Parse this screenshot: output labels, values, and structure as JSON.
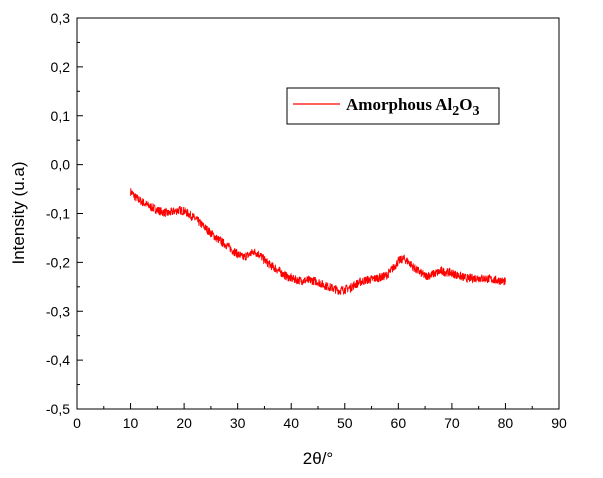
{
  "chart_data": {
    "type": "line",
    "title": "",
    "xlabel": "2θ/°",
    "ylabel": "Intensity (u.a)",
    "xlim": [
      0,
      90
    ],
    "ylim": [
      -0.5,
      0.3
    ],
    "x_ticks": [
      0,
      10,
      20,
      30,
      40,
      50,
      60,
      70,
      80,
      90
    ],
    "x_tick_labels": [
      "0",
      "10",
      "20",
      "30",
      "40",
      "50",
      "60",
      "70",
      "80",
      "90"
    ],
    "y_ticks": [
      -0.5,
      -0.4,
      -0.3,
      -0.2,
      -0.1,
      0.0,
      0.1,
      0.2,
      0.3
    ],
    "y_tick_labels": [
      "-0,5",
      "-0,4",
      "-0,3",
      "-0,2",
      "-0,1",
      "0,0",
      "0,1",
      "0,2",
      "0,3"
    ],
    "grid": false,
    "legend_position": "top-right",
    "series_color": "#ff0000",
    "legend": {
      "prefix": "Amorphous Al",
      "sub1": "2",
      "mid": "O",
      "sub2": "3"
    },
    "series": [
      {
        "name": "Amorphous Al2O3",
        "x": [
          10,
          11,
          12,
          13,
          14,
          15,
          16,
          17,
          18,
          19,
          20,
          21,
          22,
          23,
          24,
          25,
          26,
          27,
          28,
          29,
          30,
          31,
          32,
          33,
          34,
          35,
          36,
          37,
          38,
          39,
          40,
          41,
          42,
          43,
          44,
          45,
          46,
          47,
          48,
          49,
          50,
          51,
          52,
          53,
          54,
          55,
          56,
          57,
          58,
          59,
          60,
          61,
          62,
          63,
          64,
          65,
          66,
          67,
          68,
          69,
          70,
          71,
          72,
          73,
          74,
          75,
          76,
          77,
          78,
          79,
          80
        ],
        "y": [
          -0.055,
          -0.068,
          -0.075,
          -0.082,
          -0.088,
          -0.093,
          -0.097,
          -0.1,
          -0.096,
          -0.093,
          -0.095,
          -0.102,
          -0.11,
          -0.12,
          -0.13,
          -0.14,
          -0.15,
          -0.158,
          -0.165,
          -0.175,
          -0.183,
          -0.19,
          -0.185,
          -0.178,
          -0.183,
          -0.195,
          -0.205,
          -0.212,
          -0.22,
          -0.228,
          -0.233,
          -0.236,
          -0.237,
          -0.237,
          -0.237,
          -0.24,
          -0.246,
          -0.25,
          -0.254,
          -0.258,
          -0.255,
          -0.252,
          -0.245,
          -0.24,
          -0.236,
          -0.235,
          -0.232,
          -0.23,
          -0.225,
          -0.212,
          -0.198,
          -0.192,
          -0.2,
          -0.212,
          -0.22,
          -0.228,
          -0.226,
          -0.222,
          -0.218,
          -0.22,
          -0.222,
          -0.226,
          -0.23,
          -0.233,
          -0.232,
          -0.232,
          -0.233,
          -0.234,
          -0.236,
          -0.237,
          -0.24
        ]
      }
    ]
  }
}
